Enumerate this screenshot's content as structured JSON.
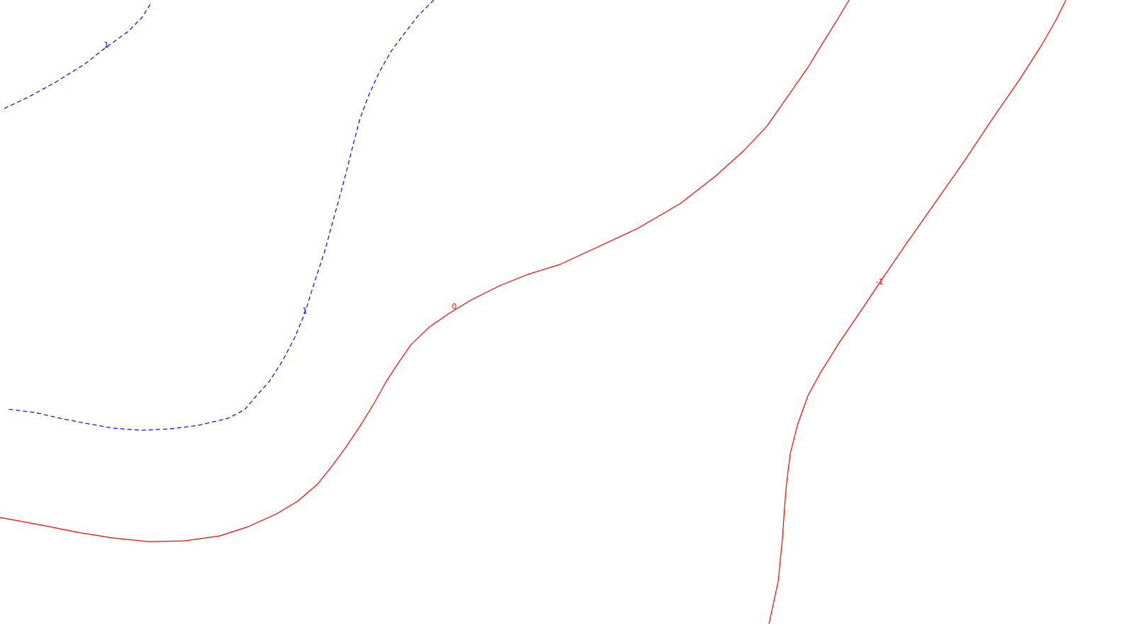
{
  "chart_data": {
    "type": "contour",
    "background": "#ffffff",
    "series": [
      {
        "level_label": "1",
        "color": "#0000ff",
        "style": "dashed",
        "points": [
          [
            6,
            153
          ],
          [
            40,
            137
          ],
          [
            80,
            115
          ],
          [
            120,
            90
          ],
          [
            148,
            68
          ],
          [
            180,
            45
          ],
          [
            200,
            25
          ],
          [
            214,
            3
          ]
        ]
      },
      {
        "level_label": "1",
        "color": "#0000ff",
        "style": "dashed",
        "points": [
          [
            612,
            0
          ],
          [
            590,
            22
          ],
          [
            570,
            48
          ],
          [
            552,
            72
          ],
          [
            535,
            102
          ],
          [
            520,
            135
          ],
          [
            508,
            167
          ],
          [
            498,
            205
          ],
          [
            488,
            245
          ],
          [
            478,
            282
          ],
          [
            468,
            318
          ],
          [
            458,
            355
          ],
          [
            448,
            385
          ],
          [
            440,
            410
          ],
          [
            430,
            442
          ],
          [
            415,
            478
          ],
          [
            398,
            510
          ],
          [
            380,
            538
          ],
          [
            362,
            558
          ],
          [
            345,
            578
          ],
          [
            322,
            590
          ],
          [
            280,
            600
          ],
          [
            240,
            605
          ],
          [
            200,
            607
          ],
          [
            160,
            604
          ],
          [
            120,
            597
          ],
          [
            85,
            590
          ],
          [
            50,
            582
          ],
          [
            10,
            577
          ]
        ]
      },
      {
        "level_label": "0",
        "color": "#ff0000",
        "style": "solid",
        "points": [
          [
            1198,
            0
          ],
          [
            1180,
            30
          ],
          [
            1160,
            62
          ],
          [
            1140,
            95
          ],
          [
            1110,
            138
          ],
          [
            1082,
            178
          ],
          [
            1050,
            212
          ],
          [
            1010,
            248
          ],
          [
            960,
            287
          ],
          [
            900,
            322
          ],
          [
            840,
            350
          ],
          [
            790,
            373
          ],
          [
            745,
            387
          ],
          [
            705,
            403
          ],
          [
            665,
            423
          ],
          [
            632,
            443
          ],
          [
            605,
            462
          ],
          [
            580,
            486
          ],
          [
            560,
            515
          ],
          [
            545,
            538
          ],
          [
            530,
            565
          ],
          [
            510,
            598
          ],
          [
            490,
            628
          ],
          [
            468,
            658
          ],
          [
            448,
            683
          ],
          [
            420,
            707
          ],
          [
            390,
            725
          ],
          [
            350,
            743
          ],
          [
            310,
            756
          ],
          [
            260,
            763
          ],
          [
            210,
            764
          ],
          [
            160,
            759
          ],
          [
            110,
            751
          ],
          [
            60,
            741
          ],
          [
            0,
            730
          ]
        ]
      },
      {
        "level_label": "-1",
        "color": "#ff0000",
        "style": "solid",
        "points": [
          [
            1504,
            0
          ],
          [
            1490,
            28
          ],
          [
            1470,
            63
          ],
          [
            1440,
            110
          ],
          [
            1400,
            168
          ],
          [
            1360,
            228
          ],
          [
            1320,
            285
          ],
          [
            1280,
            342
          ],
          [
            1245,
            393
          ],
          [
            1215,
            438
          ],
          [
            1185,
            482
          ],
          [
            1158,
            525
          ],
          [
            1140,
            558
          ],
          [
            1125,
            600
          ],
          [
            1115,
            640
          ],
          [
            1110,
            680
          ],
          [
            1107,
            715
          ],
          [
            1104,
            760
          ],
          [
            1098,
            820
          ],
          [
            1085,
            880
          ]
        ]
      }
    ]
  }
}
